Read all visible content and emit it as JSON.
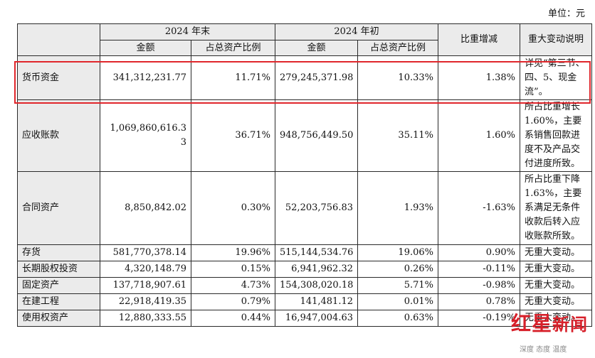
{
  "unit_note": "单位：元",
  "header": {
    "end_period": "2024 年末",
    "start_period": "2024 年初",
    "amount": "金额",
    "ratio": "占总资产比例",
    "change": "比重增减",
    "explanation": "重大变动说明"
  },
  "rows": [
    {
      "item": "货币资金",
      "end_amount": "341,312,231.77",
      "end_ratio": "11.71%",
      "start_amount": "279,245,371.98",
      "start_ratio": "10.33%",
      "change": "1.38%",
      "note": "详见“第三节、四、5、现金流”。"
    },
    {
      "item": "应收账款",
      "end_amount": "1,069,860,616.33",
      "end_ratio": "36.71%",
      "start_amount": "948,756,449.50",
      "start_ratio": "35.11%",
      "change": "1.60%",
      "note": "所占比重增长1.60%，主要系销售回款进度不及产品交付进度所致。"
    },
    {
      "item": "合同资产",
      "end_amount": "8,850,842.02",
      "end_ratio": "0.30%",
      "start_amount": "52,203,756.83",
      "start_ratio": "1.93%",
      "change": "-1.63%",
      "note": "所占比重下降1.63%，主要系满足无条件收款后转入应收账款所致。"
    },
    {
      "item": "存货",
      "end_amount": "581,770,378.14",
      "end_ratio": "19.96%",
      "start_amount": "515,144,534.76",
      "start_ratio": "19.06%",
      "change": "0.90%",
      "note": "无重大变动。"
    },
    {
      "item": "长期股权投资",
      "end_amount": "4,320,148.79",
      "end_ratio": "0.15%",
      "start_amount": "6,941,962.32",
      "start_ratio": "0.26%",
      "change": "-0.11%",
      "note": "无重大变动。"
    },
    {
      "item": "固定资产",
      "end_amount": "137,718,907.61",
      "end_ratio": "4.73%",
      "start_amount": "154,308,020.18",
      "start_ratio": "5.71%",
      "change": "-0.98%",
      "note": "无重大变动。"
    },
    {
      "item": "在建工程",
      "end_amount": "22,918,419.35",
      "end_ratio": "0.79%",
      "start_amount": "141,481.12",
      "start_ratio": "0.01%",
      "change": "0.78%",
      "note": "无重大变动。"
    },
    {
      "item": "使用权资产",
      "end_amount": "12,880,333.55",
      "end_ratio": "0.44%",
      "start_amount": "16,947,004.63",
      "start_ratio": "0.63%",
      "change": "-0.19%",
      "note": "无重大变动。"
    }
  ],
  "watermark": {
    "brand_a": "红星",
    "brand_b": "新闻",
    "tagline": "深度 态度 温度"
  },
  "colors": {
    "highlight": "#e0262b",
    "header_bg": "#ebebeb",
    "brand": "#d7202a"
  }
}
